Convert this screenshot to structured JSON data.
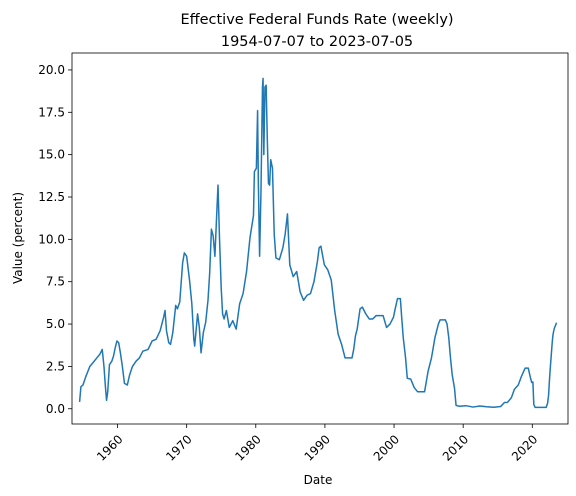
{
  "chart_data": {
    "type": "line",
    "title": "Effective Federal Funds Rate (weekly)",
    "subtitle": "1954-07-07 to 2023-07-05",
    "xlabel": "Date",
    "ylabel": "Value (percent)",
    "xlim": [
      "1953-06-01",
      "2025-03-01"
    ],
    "ylim": [
      -0.9,
      21.0
    ],
    "x_ticks": [
      "1960",
      "1970",
      "1980",
      "1990",
      "2000",
      "2010",
      "2020"
    ],
    "y_ticks": [
      "0.0",
      "2.5",
      "5.0",
      "7.5",
      "10.0",
      "12.5",
      "15.0",
      "17.5",
      "20.0"
    ],
    "grid": false,
    "legend": "none",
    "line_color": "#1f77b4",
    "series": [
      {
        "x": [
          "1954-07-07",
          "1954-09-15",
          "1955-01-01",
          "1955-06-01",
          "1956-01-01",
          "1956-06-01",
          "1957-01-01",
          "1957-06-01",
          "1957-10-15",
          "1958-01-15",
          "1958-04-01",
          "1958-06-01",
          "1958-08-01",
          "1958-11-01",
          "1959-03-01",
          "1959-06-01",
          "1959-09-01",
          "1959-12-01",
          "1960-03-01",
          "1960-06-01",
          "1960-09-01",
          "1961-01-01",
          "1961-06-01",
          "1961-10-01",
          "1962-03-01",
          "1962-09-01",
          "1963-03-01",
          "1963-09-01",
          "1964-06-01",
          "1965-01-01",
          "1965-08-01",
          "1966-03-01",
          "1966-09-01",
          "1966-11-15",
          "1967-02-01",
          "1967-06-01",
          "1967-09-01",
          "1968-01-01",
          "1968-06-01",
          "1968-09-01",
          "1969-01-01",
          "1969-06-01",
          "1969-09-01",
          "1970-01-01",
          "1970-06-01",
          "1970-10-01",
          "1971-01-15",
          "1971-03-01",
          "1971-08-01",
          "1971-11-01",
          "1972-02-01",
          "1972-06-01",
          "1972-10-01",
          "1973-02-01",
          "1973-05-01",
          "1973-08-01",
          "1973-11-01",
          "1974-02-01",
          "1974-05-01",
          "1974-07-15",
          "1974-10-01",
          "1975-01-01",
          "1975-03-15",
          "1975-06-01",
          "1975-10-01",
          "1976-03-01",
          "1976-09-01",
          "1977-03-01",
          "1977-09-01",
          "1978-03-01",
          "1978-09-01",
          "1979-03-01",
          "1979-09-01",
          "1979-10-20",
          "1980-02-01",
          "1980-04-05",
          "1980-05-15",
          "1980-07-20",
          "1980-10-01",
          "1980-12-20",
          "1981-01-20",
          "1981-03-01",
          "1981-05-01",
          "1981-07-01",
          "1981-09-01",
          "1981-11-01",
          "1982-01-01",
          "1982-03-01",
          "1982-06-01",
          "1982-09-01",
          "1982-12-01",
          "1983-06-01",
          "1983-12-01",
          "1984-04-01",
          "1984-08-01",
          "1984-12-01",
          "1985-06-01",
          "1985-12-01",
          "1986-06-01",
          "1986-12-01",
          "1987-06-01",
          "1987-12-01",
          "1988-06-01",
          "1988-12-01",
          "1989-03-01",
          "1989-06-01",
          "1989-12-01",
          "1990-06-01",
          "1990-12-01",
          "1991-06-01",
          "1991-12-01",
          "1992-06-01",
          "1992-12-01",
          "1993-06-01",
          "1993-12-01",
          "1994-03-01",
          "1994-06-01",
          "1994-09-01",
          "1995-02-01",
          "1995-06-01",
          "1995-12-01",
          "1996-06-01",
          "1996-12-01",
          "1997-06-01",
          "1997-12-01",
          "1998-06-01",
          "1998-12-01",
          "1999-06-01",
          "1999-12-01",
          "2000-03-01",
          "2000-07-01",
          "2000-12-01",
          "2001-02-01",
          "2001-05-01",
          "2001-09-01",
          "2001-12-01",
          "2002-06-01",
          "2002-12-01",
          "2003-06-01",
          "2003-12-01",
          "2004-06-01",
          "2004-12-01",
          "2005-06-01",
          "2005-12-01",
          "2006-06-01",
          "2006-09-01",
          "2007-06-01",
          "2007-09-01",
          "2007-12-01",
          "2008-03-01",
          "2008-06-01",
          "2008-10-01",
          "2008-12-20",
          "2009-06-01",
          "2010-06-01",
          "2011-06-01",
          "2012-06-01",
          "2013-06-01",
          "2014-06-01",
          "2015-06-01",
          "2015-12-20",
          "2016-06-01",
          "2016-12-20",
          "2017-06-01",
          "2017-12-20",
          "2018-06-01",
          "2018-12-20",
          "2019-06-01",
          "2019-08-01",
          "2019-10-01",
          "2019-12-01",
          "2020-02-01",
          "2020-03-20",
          "2020-06-01",
          "2021-06-01",
          "2022-01-01",
          "2022-03-20",
          "2022-05-10",
          "2022-06-20",
          "2022-08-01",
          "2022-09-25",
          "2022-11-10",
          "2022-12-20",
          "2023-02-05",
          "2023-03-25",
          "2023-05-05",
          "2023-07-05"
        ],
        "y": [
          0.4,
          1.3,
          1.4,
          1.9,
          2.5,
          2.7,
          3.0,
          3.2,
          3.5,
          2.5,
          1.3,
          0.5,
          1.0,
          2.6,
          2.8,
          3.1,
          3.6,
          4.0,
          3.9,
          3.3,
          2.6,
          1.5,
          1.4,
          2.0,
          2.5,
          2.8,
          3.0,
          3.4,
          3.5,
          4.0,
          4.1,
          4.6,
          5.4,
          5.8,
          4.6,
          3.9,
          3.8,
          4.5,
          6.1,
          5.9,
          6.3,
          8.6,
          9.2,
          9.0,
          7.6,
          6.2,
          4.1,
          3.7,
          5.6,
          4.8,
          3.3,
          4.5,
          5.1,
          6.4,
          8.0,
          10.6,
          10.2,
          9.0,
          11.3,
          13.2,
          10.1,
          7.1,
          5.6,
          5.3,
          5.8,
          4.8,
          5.2,
          4.7,
          6.2,
          6.8,
          8.1,
          10.1,
          11.4,
          14.0,
          14.2,
          17.6,
          13.4,
          9.0,
          12.8,
          19.0,
          19.5,
          15.0,
          19.0,
          19.1,
          15.9,
          13.3,
          13.2,
          14.7,
          14.2,
          10.3,
          8.9,
          8.8,
          9.5,
          10.3,
          11.5,
          8.5,
          7.8,
          8.1,
          6.9,
          6.4,
          6.7,
          6.8,
          7.5,
          8.7,
          9.5,
          9.6,
          8.5,
          8.2,
          7.6,
          5.8,
          4.4,
          3.8,
          3.0,
          3.0,
          3.0,
          3.5,
          4.3,
          4.7,
          5.9,
          6.0,
          5.6,
          5.3,
          5.3,
          5.5,
          5.5,
          5.5,
          4.8,
          5.0,
          5.4,
          5.9,
          6.5,
          6.5,
          5.5,
          4.2,
          3.0,
          1.8,
          1.75,
          1.25,
          1.0,
          1.0,
          1.0,
          2.2,
          3.0,
          4.2,
          5.0,
          5.25,
          5.25,
          5.0,
          4.2,
          3.0,
          2.0,
          1.2,
          0.2,
          0.15,
          0.18,
          0.1,
          0.16,
          0.12,
          0.09,
          0.13,
          0.37,
          0.38,
          0.65,
          1.15,
          1.4,
          1.9,
          2.4,
          2.4,
          2.1,
          1.8,
          1.55,
          1.58,
          0.25,
          0.08,
          0.08,
          0.08,
          0.33,
          0.8,
          1.6,
          2.3,
          3.1,
          3.8,
          4.3,
          4.6,
          4.8,
          4.9,
          5.08
        ]
      }
    ]
  }
}
